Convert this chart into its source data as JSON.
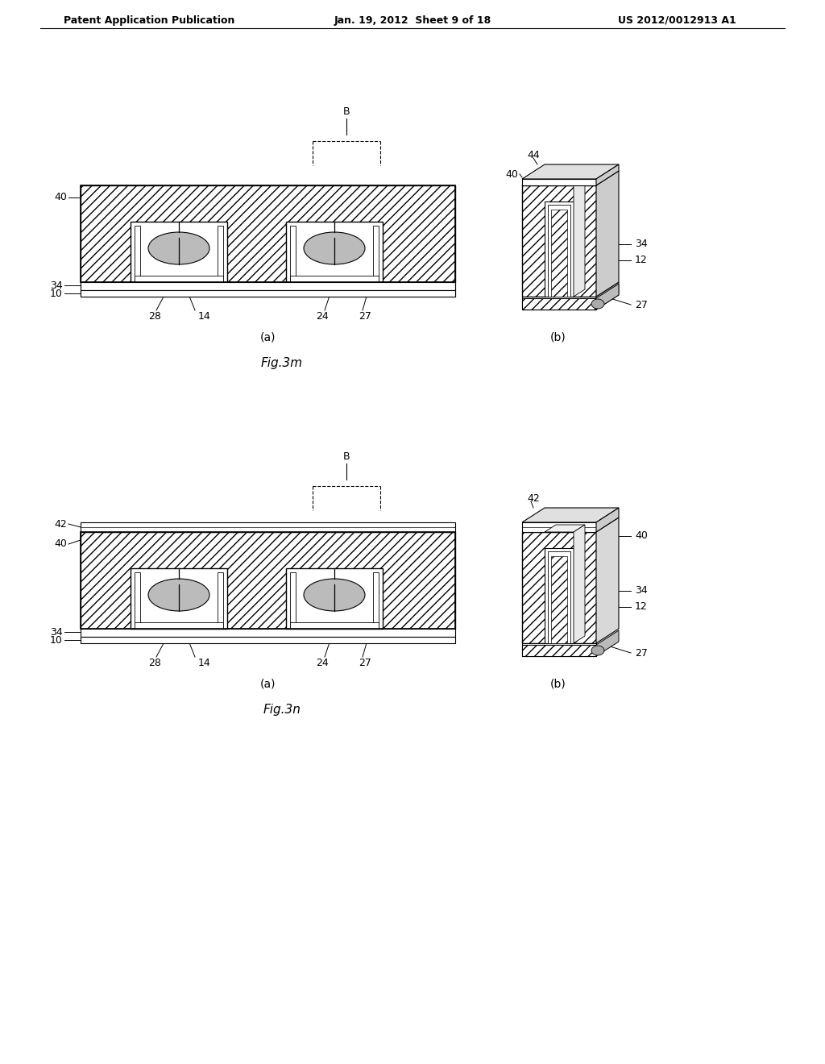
{
  "header_left": "Patent Application Publication",
  "header_mid": "Jan. 19, 2012  Sheet 9 of 18",
  "header_right": "US 2012/0012913 A1",
  "fig_label_m": "Fig.3m",
  "fig_label_n": "Fig.3n",
  "bg_color": "#ffffff"
}
